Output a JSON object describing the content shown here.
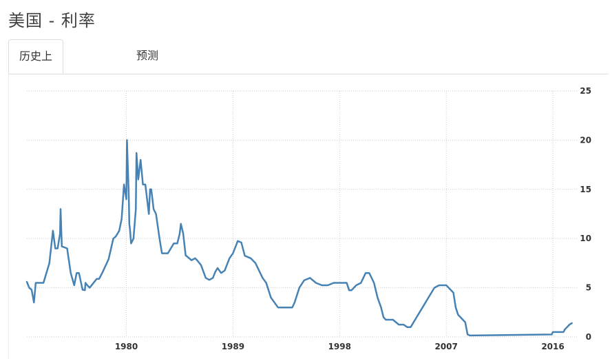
{
  "page": {
    "title": "美国 - 利率"
  },
  "tabs": [
    {
      "label": "历史上",
      "active": true
    },
    {
      "label": "预测",
      "active": false
    }
  ],
  "colors": {
    "line": "#4682b4",
    "grid": "#cccccc",
    "tab_border": "#dddddd"
  },
  "chart_data": {
    "type": "line",
    "title": "",
    "xlabel": "",
    "ylabel": "",
    "x_ticks": [
      "1980",
      "1989",
      "1998",
      "2007",
      "2016"
    ],
    "y_ticks": [
      "0",
      "5",
      "10",
      "15",
      "20",
      "25"
    ],
    "xlim": [
      1971.6,
      2017.8
    ],
    "ylim": [
      0,
      25
    ],
    "y_axis_side": "right",
    "grid": true,
    "series": [
      {
        "name": "",
        "x": [
          1971.6,
          1971.8,
          1972.0,
          1972.2,
          1972.35,
          1972.5,
          1973.0,
          1973.5,
          1973.8,
          1974.0,
          1974.2,
          1974.4,
          1974.45,
          1974.55,
          1975.0,
          1975.3,
          1975.6,
          1975.8,
          1976.0,
          1976.3,
          1976.5,
          1976.55,
          1976.7,
          1976.9,
          1977.5,
          1977.7,
          1978.0,
          1978.5,
          1978.9,
          1979.1,
          1979.4,
          1979.6,
          1979.8,
          1980.0,
          1980.05,
          1980.2,
          1980.25,
          1980.3,
          1980.4,
          1980.6,
          1980.8,
          1980.85,
          1981.0,
          1981.2,
          1981.4,
          1981.5,
          1981.6,
          1981.9,
          1982.0,
          1982.1,
          1982.3,
          1982.5,
          1982.8,
          1983.0,
          1983.5,
          1984.0,
          1984.3,
          1984.5,
          1984.6,
          1984.8,
          1985.0,
          1985.5,
          1985.8,
          1986.0,
          1986.3,
          1986.7,
          1987.0,
          1987.3,
          1987.5,
          1987.7,
          1988.0,
          1988.3,
          1988.7,
          1989.0,
          1989.4,
          1989.7,
          1990.0,
          1990.5,
          1990.9,
          1991.5,
          1991.8,
          1992.2,
          1992.8,
          1993.5,
          1994.0,
          1994.2,
          1994.6,
          1995.0,
          1995.5,
          1996.0,
          1996.5,
          1997.0,
          1997.5,
          1998.0,
          1998.6,
          1998.8,
          1999.0,
          1999.4,
          1999.8,
          2000.0,
          2000.2,
          2000.5,
          2000.9,
          2001.2,
          2001.5,
          2001.7,
          2001.9,
          2002.5,
          2003.0,
          2003.4,
          2003.7,
          2004.0,
          2004.5,
          2005.0,
          2005.5,
          2006.0,
          2006.4,
          2006.7,
          2007.0,
          2007.6,
          2007.8,
          2008.0,
          2008.2,
          2008.6,
          2008.8,
          2009.0,
          2015.9,
          2016.0,
          2016.9,
          2017.0,
          2017.2,
          2017.4,
          2017.6
        ],
        "y": [
          5.6,
          5.0,
          4.8,
          3.5,
          5.5,
          5.5,
          5.5,
          7.5,
          10.8,
          9.0,
          9.0,
          10.5,
          13.0,
          9.2,
          9.0,
          6.5,
          5.25,
          6.5,
          6.5,
          4.8,
          4.75,
          5.5,
          5.25,
          5.0,
          5.9,
          5.9,
          6.6,
          7.9,
          10.0,
          10.2,
          10.8,
          12.0,
          15.5,
          14.0,
          20.0,
          14.5,
          11.5,
          11.0,
          9.5,
          10.0,
          13.0,
          18.7,
          16.0,
          18.0,
          15.5,
          15.5,
          15.5,
          12.5,
          15.0,
          15.0,
          13.0,
          12.5,
          10.0,
          8.5,
          8.5,
          9.5,
          9.5,
          10.5,
          11.5,
          10.5,
          8.3,
          7.8,
          8.0,
          7.75,
          7.3,
          6.0,
          5.8,
          6.0,
          6.6,
          7.0,
          6.5,
          6.75,
          8.0,
          8.5,
          9.75,
          9.6,
          8.25,
          8.0,
          7.5,
          6.0,
          5.5,
          4.0,
          3.0,
          3.0,
          3.0,
          3.5,
          5.0,
          5.75,
          6.0,
          5.5,
          5.25,
          5.25,
          5.5,
          5.5,
          5.5,
          4.75,
          4.75,
          5.25,
          5.5,
          6.0,
          6.5,
          6.5,
          5.5,
          4.0,
          3.0,
          2.0,
          1.75,
          1.75,
          1.25,
          1.25,
          1.0,
          1.0,
          2.0,
          3.0,
          4.0,
          5.0,
          5.25,
          5.25,
          5.25,
          4.5,
          3.0,
          2.25,
          2.0,
          1.5,
          0.25,
          0.15,
          0.25,
          0.5,
          0.5,
          0.75,
          1.0,
          1.25,
          1.4
        ]
      }
    ]
  }
}
